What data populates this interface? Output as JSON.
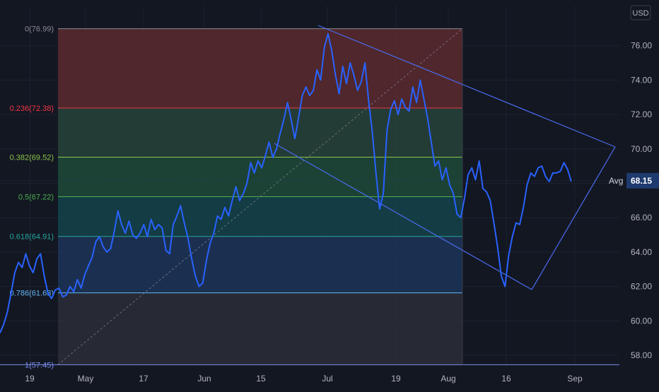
{
  "colors": {
    "background": "#131722",
    "price_line": "#2962ff",
    "trend_lines": "#4a6cf0",
    "axis_text": "#b2b5be",
    "avg_badge": "#1e3a6e",
    "grid": "#1e2230"
  },
  "price_axis": {
    "currency": "USD",
    "ticks": [
      "76.00",
      "74.00",
      "72.00",
      "70.00",
      "68.00",
      "66.00",
      "64.00",
      "62.00",
      "60.00",
      "58.00"
    ],
    "avg_label": "Avg",
    "avg_value": "68.15"
  },
  "time_axis": {
    "ticks": [
      "19",
      "May",
      "17",
      "Jun",
      "15",
      "Jul",
      "19",
      "Aug",
      "16",
      "Sep"
    ]
  },
  "fibonacci": {
    "levels": [
      {
        "label": "0(76.99)",
        "price": 76.99,
        "color": "#8a8c93",
        "fill": "#5a2a2e"
      },
      {
        "label": "0.236(72.38)",
        "price": 72.38,
        "color": "#f23645",
        "fill": "#27433a"
      },
      {
        "label": "0.382(69.52)",
        "price": 69.52,
        "color": "#8bc34a",
        "fill": "#1f4a3a"
      },
      {
        "label": "0.5(67.22)",
        "price": 67.22,
        "color": "#4caf50",
        "fill": "#14434a"
      },
      {
        "label": "0.618(64.91)",
        "price": 64.91,
        "color": "#26a69a",
        "fill": "#1d3558"
      },
      {
        "label": "0.786(61.63)",
        "price": 61.63,
        "color": "#64b5f6",
        "fill": "#2b2e38"
      },
      {
        "label": "1(57.45)",
        "price": 57.45,
        "color": "#7b8ff0",
        "fill": ""
      }
    ]
  },
  "chart_data": {
    "type": "line",
    "y_unit": "USD",
    "ylim": [
      57.2,
      78.6
    ],
    "x_tick_labels": [
      "19",
      "May",
      "17",
      "Jun",
      "15",
      "Jul",
      "19",
      "Aug",
      "16",
      "Sep"
    ],
    "series": [
      {
        "values": [
          59.3,
          59.8,
          60.5,
          61.6,
          62.8,
          63.4,
          63.1,
          63.9,
          63.2,
          62.8,
          63.6,
          63.9,
          62.6,
          61.6,
          61.3,
          61.8,
          61.9,
          61.4,
          61.5,
          62.0,
          61.7,
          62.4,
          61.9,
          62.7,
          63.2,
          63.7,
          64.6,
          64.9,
          64.3,
          64.0,
          64.2,
          65.2,
          66.4,
          65.6,
          65.1,
          65.8,
          65.0,
          64.8,
          65.1,
          65.6,
          64.9,
          65.9,
          65.3,
          65.6,
          65.4,
          64.1,
          63.9,
          65.6,
          66.1,
          66.7,
          65.7,
          64.8,
          63.6,
          62.6,
          62.0,
          62.2,
          63.5,
          64.5,
          65.1,
          66.1,
          65.9,
          66.6,
          66.1,
          67.0,
          67.8,
          67.0,
          67.4,
          68.0,
          69.2,
          68.6,
          69.3,
          68.9,
          69.6,
          70.4,
          69.5,
          70.0,
          70.9,
          71.7,
          72.7,
          71.7,
          70.6,
          71.8,
          73.1,
          73.6,
          73.1,
          73.4,
          74.6,
          74.0,
          75.9,
          76.7,
          75.7,
          74.3,
          73.2,
          74.8,
          73.8,
          75.0,
          74.3,
          73.4,
          73.9,
          75.0,
          72.8,
          71.0,
          68.6,
          66.5,
          67.4,
          71.1,
          72.3,
          72.8,
          72.0,
          72.9,
          72.4,
          72.2,
          73.6,
          72.7,
          74.0,
          72.9,
          71.8,
          70.4,
          69.0,
          69.3,
          68.2,
          68.9,
          67.9,
          67.4,
          66.2,
          66.0,
          67.1,
          68.5,
          68.9,
          68.2,
          69.3,
          67.7,
          67.5,
          67.0,
          65.7,
          64.3,
          62.6,
          62.0,
          63.8,
          64.9,
          65.7,
          65.6,
          66.6,
          67.9,
          68.6,
          68.4,
          68.9,
          69.0,
          68.4,
          68.1,
          68.6,
          68.6,
          68.7,
          69.2,
          68.8,
          68.1
        ]
      }
    ],
    "annotations": {
      "fibonacci_retracement": [
        76.99,
        72.38,
        69.52,
        67.22,
        64.91,
        61.63,
        57.45
      ],
      "avg": 68.15
    }
  }
}
